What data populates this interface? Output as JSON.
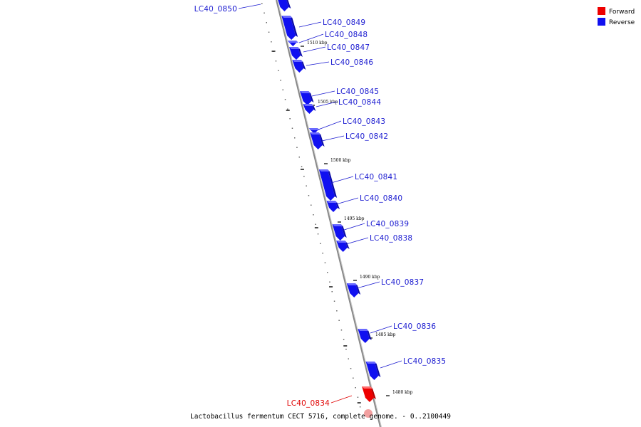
{
  "legend": [
    {
      "label": "Forward",
      "color": "#ee0000"
    },
    {
      "label": "Reverse",
      "color": "#1010f0"
    }
  ],
  "caption": "Lactobacillus fermentum CECT 5716, complete genome. - 0..2100449",
  "colors": {
    "forward": "#ee0000",
    "reverse": "#1010f0",
    "reverse_label": "#1a1ad0",
    "forward_label": "#e00000",
    "backbone": "#888888"
  },
  "tick_labels": [
    "1510 kbp",
    "1505 kbp",
    "1500 kbp",
    "1495 kbp",
    "1490 kbp",
    "1485 kbp",
    "1480 kbp"
  ],
  "genes": [
    {
      "label": "LC40_0850",
      "strand": "reverse"
    },
    {
      "label": "LC40_0849",
      "strand": "reverse"
    },
    {
      "label": "LC40_0848",
      "strand": "reverse"
    },
    {
      "label": "LC40_0847",
      "strand": "reverse"
    },
    {
      "label": "LC40_0846",
      "strand": "reverse"
    },
    {
      "label": "LC40_0845",
      "strand": "reverse"
    },
    {
      "label": "LC40_0844",
      "strand": "reverse"
    },
    {
      "label": "LC40_0843",
      "strand": "reverse"
    },
    {
      "label": "LC40_0842",
      "strand": "reverse"
    },
    {
      "label": "LC40_0841",
      "strand": "reverse"
    },
    {
      "label": "LC40_0840",
      "strand": "reverse"
    },
    {
      "label": "LC40_0839",
      "strand": "reverse"
    },
    {
      "label": "LC40_0838",
      "strand": "reverse"
    },
    {
      "label": "LC40_0837",
      "strand": "reverse"
    },
    {
      "label": "LC40_0836",
      "strand": "reverse"
    },
    {
      "label": "LC40_0835",
      "strand": "reverse"
    },
    {
      "label": "LC40_0834",
      "strand": "forward"
    }
  ]
}
